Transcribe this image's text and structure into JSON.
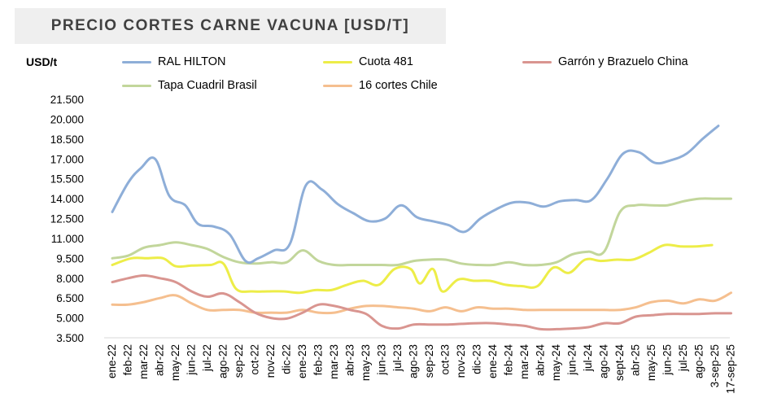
{
  "title": "PRECIO CORTES CARNE VACUNA [USD/T]",
  "chart_data": {
    "type": "line",
    "title": "PRECIO CORTES CARNE VACUNA [USD/T]",
    "ylabel": "USD/t",
    "xlabel": "",
    "ylim": [
      3500,
      21500
    ],
    "yticks": [
      "3.500",
      "5.000",
      "6.500",
      "8.000",
      "9.500",
      "11.000",
      "12.500",
      "14.000",
      "15.500",
      "17.000",
      "18.500",
      "20.000",
      "21.500"
    ],
    "ytick_values": [
      3500,
      5000,
      6500,
      8000,
      9500,
      11000,
      12500,
      14000,
      15500,
      17000,
      18500,
      20000,
      21500
    ],
    "grid": false,
    "legend_position": "top",
    "categories": [
      "ene-22",
      "feb-22",
      "mar-22",
      "abr-22",
      "may-22",
      "jun-22",
      "jul-22",
      "ago-22",
      "sep-22",
      "oct-22",
      "nov-22",
      "dic-22",
      "ene-23",
      "feb-23",
      "mar-23",
      "abr-23",
      "may-23",
      "jun-23",
      "jul-23",
      "ago-23",
      "sep-23",
      "oct-23",
      "nov-23",
      "dic-23",
      "ene-24",
      "feb-24",
      "mar-24",
      "abr-24",
      "may-24",
      "jun-24",
      "jul-24",
      "ago-24",
      "sept-24",
      "abr-25",
      "may-25",
      "jun-25",
      "jul-25",
      "ago-25",
      "3-sep-25",
      "17-sep-25"
    ],
    "x_labels": [
      "ene-22",
      "feb-22",
      "mar-22",
      "abr-22",
      "may-22",
      "jun-22",
      "jul-22",
      "ago-22",
      "sep-22",
      "oct-22",
      "nov-22",
      "dic-22",
      "ene-23",
      "feb-23",
      "mar-23",
      "abr-23",
      "may-23",
      "jun-23",
      "jul-23",
      "ago-23",
      "sep-23",
      "oct-23",
      "nov-23",
      "dic-23",
      "ene-24",
      "feb-24",
      "mar-24",
      "abr-24",
      "may-24",
      "jun-24",
      "jul-24",
      "ago-24",
      "sept-24",
      "abr-25",
      "may-25",
      "jun-25",
      "jul-25",
      "ago-25",
      "3-sep-25",
      "17-sep-25"
    ],
    "series": [
      {
        "name": "RAL HILTON",
        "color": "#8eaed8",
        "points": [
          [
            0,
            13000
          ],
          [
            1,
            15200
          ],
          [
            1.8,
            16300
          ],
          [
            2.7,
            17000
          ],
          [
            3.6,
            14200
          ],
          [
            4.6,
            13500
          ],
          [
            5.4,
            12100
          ],
          [
            6.4,
            11900
          ],
          [
            7.4,
            11300
          ],
          [
            8.4,
            9300
          ],
          [
            9.2,
            9500
          ],
          [
            10.2,
            10100
          ],
          [
            11.2,
            10600
          ],
          [
            12.2,
            15000
          ],
          [
            13.2,
            14700
          ],
          [
            14.2,
            13600
          ],
          [
            15.2,
            12900
          ],
          [
            16.2,
            12300
          ],
          [
            17.2,
            12500
          ],
          [
            18.2,
            13500
          ],
          [
            19.2,
            12600
          ],
          [
            20.2,
            12300
          ],
          [
            21.2,
            12000
          ],
          [
            22.2,
            11500
          ],
          [
            23.2,
            12500
          ],
          [
            24.2,
            13200
          ],
          [
            25.2,
            13700
          ],
          [
            26.2,
            13700
          ],
          [
            27.2,
            13400
          ],
          [
            28.2,
            13800
          ],
          [
            29.2,
            13900
          ],
          [
            30.2,
            13900
          ],
          [
            31.2,
            15500
          ],
          [
            32.2,
            17400
          ],
          [
            33.2,
            17500
          ],
          [
            34.2,
            16700
          ],
          [
            35.2,
            16900
          ],
          [
            36.2,
            17400
          ],
          [
            37.2,
            18500
          ],
          [
            38.2,
            19500
          ]
        ]
      },
      {
        "name": "Cuota 481",
        "color": "#eded48",
        "points": [
          [
            0,
            9000
          ],
          [
            1.2,
            9500
          ],
          [
            2.2,
            9500
          ],
          [
            3.2,
            9500
          ],
          [
            4,
            8900
          ],
          [
            5,
            8950
          ],
          [
            6.2,
            9000
          ],
          [
            7,
            9100
          ],
          [
            7.8,
            7200
          ],
          [
            8.8,
            7000
          ],
          [
            9.8,
            7000
          ],
          [
            10.8,
            7000
          ],
          [
            11.8,
            6900
          ],
          [
            12.8,
            7100
          ],
          [
            13.8,
            7100
          ],
          [
            14.8,
            7500
          ],
          [
            15.8,
            7800
          ],
          [
            16.8,
            7500
          ],
          [
            17.8,
            8700
          ],
          [
            18.8,
            8700
          ],
          [
            19.4,
            7600
          ],
          [
            20.2,
            8700
          ],
          [
            20.8,
            7000
          ],
          [
            21.8,
            7900
          ],
          [
            22.8,
            7800
          ],
          [
            23.8,
            7800
          ],
          [
            24.8,
            7500
          ],
          [
            25.8,
            7400
          ],
          [
            26.8,
            7400
          ],
          [
            27.8,
            8800
          ],
          [
            28.8,
            8400
          ],
          [
            29.8,
            9400
          ],
          [
            30.8,
            9300
          ],
          [
            31.8,
            9400
          ],
          [
            32.8,
            9400
          ],
          [
            33.8,
            9900
          ],
          [
            34.8,
            10500
          ],
          [
            35.8,
            10400
          ],
          [
            36.8,
            10400
          ],
          [
            37.8,
            10500
          ]
        ]
      },
      {
        "name": "Garrón y Brazuelo China",
        "color": "#d99590",
        "points": [
          [
            0,
            7700
          ],
          [
            1,
            8000
          ],
          [
            2,
            8200
          ],
          [
            3,
            8000
          ],
          [
            4,
            7700
          ],
          [
            5,
            7000
          ],
          [
            6,
            6600
          ],
          [
            7,
            6850
          ],
          [
            8,
            6200
          ],
          [
            9,
            5400
          ],
          [
            10,
            5000
          ],
          [
            11,
            4950
          ],
          [
            12,
            5400
          ],
          [
            13,
            6000
          ],
          [
            14,
            5900
          ],
          [
            15,
            5600
          ],
          [
            16,
            5300
          ],
          [
            17,
            4400
          ],
          [
            18,
            4200
          ],
          [
            19,
            4500
          ],
          [
            20,
            4500
          ],
          [
            21,
            4500
          ],
          [
            22,
            4550
          ],
          [
            23,
            4600
          ],
          [
            24,
            4600
          ],
          [
            25,
            4500
          ],
          [
            26,
            4400
          ],
          [
            27,
            4150
          ],
          [
            28,
            4150
          ],
          [
            29,
            4200
          ],
          [
            30,
            4300
          ],
          [
            31,
            4600
          ],
          [
            32,
            4600
          ],
          [
            33,
            5100
          ],
          [
            34,
            5200
          ],
          [
            35,
            5300
          ],
          [
            36,
            5300
          ],
          [
            37,
            5300
          ],
          [
            38,
            5350
          ],
          [
            39,
            5350
          ]
        ]
      },
      {
        "name": "Tapa Cuadril Brasil",
        "color": "#c2d69b",
        "points": [
          [
            0,
            9500
          ],
          [
            1,
            9700
          ],
          [
            2,
            10300
          ],
          [
            3,
            10500
          ],
          [
            4,
            10700
          ],
          [
            5,
            10500
          ],
          [
            6,
            10200
          ],
          [
            7,
            9600
          ],
          [
            8,
            9200
          ],
          [
            9,
            9100
          ],
          [
            10,
            9200
          ],
          [
            11,
            9200
          ],
          [
            12,
            10100
          ],
          [
            13,
            9300
          ],
          [
            14,
            9000
          ],
          [
            15,
            9000
          ],
          [
            16,
            9000
          ],
          [
            17,
            9000
          ],
          [
            18,
            9000
          ],
          [
            19,
            9300
          ],
          [
            20,
            9400
          ],
          [
            21,
            9400
          ],
          [
            22,
            9100
          ],
          [
            23,
            9000
          ],
          [
            24,
            9000
          ],
          [
            25,
            9200
          ],
          [
            26,
            9000
          ],
          [
            27,
            9000
          ],
          [
            28,
            9200
          ],
          [
            29,
            9800
          ],
          [
            30,
            10000
          ],
          [
            31,
            10000
          ],
          [
            32,
            13000
          ],
          [
            33,
            13500
          ],
          [
            34,
            13500
          ],
          [
            35,
            13500
          ],
          [
            36,
            13800
          ],
          [
            37,
            14000
          ],
          [
            38,
            14000
          ],
          [
            39,
            14000
          ]
        ]
      },
      {
        "name": "16 cortes Chile",
        "color": "#f5bf8f",
        "points": [
          [
            0,
            6000
          ],
          [
            1,
            6000
          ],
          [
            2,
            6200
          ],
          [
            3,
            6500
          ],
          [
            4,
            6700
          ],
          [
            5,
            6100
          ],
          [
            6,
            5600
          ],
          [
            7,
            5600
          ],
          [
            8,
            5600
          ],
          [
            9,
            5400
          ],
          [
            10,
            5400
          ],
          [
            11,
            5400
          ],
          [
            12,
            5600
          ],
          [
            13,
            5400
          ],
          [
            14,
            5400
          ],
          [
            15,
            5700
          ],
          [
            16,
            5900
          ],
          [
            17,
            5900
          ],
          [
            18,
            5800
          ],
          [
            19,
            5700
          ],
          [
            20,
            5500
          ],
          [
            21,
            5800
          ],
          [
            22,
            5500
          ],
          [
            23,
            5800
          ],
          [
            24,
            5700
          ],
          [
            25,
            5700
          ],
          [
            26,
            5600
          ],
          [
            27,
            5600
          ],
          [
            28,
            5600
          ],
          [
            29,
            5600
          ],
          [
            30,
            5600
          ],
          [
            31,
            5600
          ],
          [
            32,
            5600
          ],
          [
            33,
            5800
          ],
          [
            34,
            6200
          ],
          [
            35,
            6300
          ],
          [
            36,
            6100
          ],
          [
            37,
            6400
          ],
          [
            38,
            6300
          ],
          [
            39,
            6900
          ]
        ]
      }
    ]
  }
}
